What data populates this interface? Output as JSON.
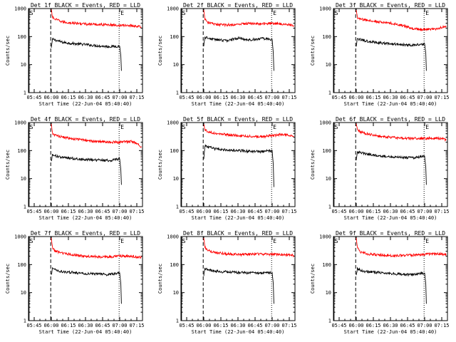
{
  "shared": {
    "ylabel": "Counts/sec",
    "xlabel": "Start Time (22-Jun-04 05:40:40)",
    "ylim": [
      1,
      1000
    ],
    "y_scale": "log",
    "y_ticks": [
      "1",
      "10",
      "100",
      "1000"
    ],
    "x_ticks": [
      "05:45",
      "06:00",
      "06:15",
      "06:30",
      "06:45",
      "07:00",
      "07:15"
    ],
    "x_tick_minutes": [
      5,
      20,
      35,
      50,
      65,
      80,
      95
    ],
    "xlim_minutes_after_start": [
      0,
      100
    ],
    "marker_S": "S",
    "marker_E": "E",
    "marker_S_minute": 0.5,
    "start_line_minute": 19.5,
    "end_line_minute": 79.5,
    "colors": {
      "events": "#000000",
      "lld": "#ff0000",
      "axes": "#000000"
    }
  },
  "chart_data": [
    {
      "type": "line",
      "title": "Det 1f BLACK = Events, RED = LLD",
      "series": [
        {
          "name": "Events",
          "color": "#000000",
          "x": [
            20,
            21,
            25,
            30,
            40,
            50,
            60,
            70,
            80,
            81,
            81.5
          ],
          "y": [
            40,
            80,
            72,
            62,
            56,
            52,
            47,
            44,
            45,
            20,
            6
          ]
        },
        {
          "name": "LLD",
          "color": "#ff0000",
          "x": [
            20,
            21,
            23,
            30,
            40,
            50,
            60,
            70,
            80,
            90,
            99
          ],
          "y": [
            900,
            500,
            420,
            330,
            300,
            280,
            270,
            265,
            250,
            250,
            220
          ]
        }
      ]
    },
    {
      "type": "line",
      "title": "Det 2f BLACK = Events, RED = LLD",
      "series": [
        {
          "name": "Events",
          "color": "#000000",
          "x": [
            20,
            21,
            25,
            30,
            40,
            50,
            60,
            70,
            80,
            81,
            81.5
          ],
          "y": [
            50,
            95,
            85,
            78,
            72,
            88,
            75,
            85,
            80,
            25,
            6
          ]
        },
        {
          "name": "LLD",
          "color": "#ff0000",
          "x": [
            20,
            21,
            23,
            30,
            40,
            50,
            60,
            70,
            80,
            90,
            99
          ],
          "y": [
            900,
            420,
            330,
            270,
            260,
            270,
            300,
            280,
            300,
            280,
            250
          ]
        }
      ]
    },
    {
      "type": "line",
      "title": "Det 3f BLACK = Events, RED = LLD",
      "series": [
        {
          "name": "Events",
          "color": "#000000",
          "x": [
            20,
            21,
            25,
            30,
            40,
            50,
            60,
            70,
            80,
            81,
            81.5
          ],
          "y": [
            45,
            82,
            75,
            68,
            60,
            55,
            52,
            50,
            55,
            25,
            6
          ]
        },
        {
          "name": "LLD",
          "color": "#ff0000",
          "x": [
            20,
            21,
            23,
            30,
            40,
            50,
            60,
            70,
            80,
            90,
            99
          ],
          "y": [
            900,
            480,
            420,
            380,
            330,
            300,
            250,
            190,
            180,
            190,
            230
          ]
        }
      ]
    },
    {
      "type": "line",
      "title": "Det 4f BLACK = Events, RED = LLD",
      "series": [
        {
          "name": "Events",
          "color": "#000000",
          "x": [
            20,
            21,
            25,
            30,
            40,
            50,
            60,
            70,
            80,
            81,
            81.5
          ],
          "y": [
            40,
            72,
            62,
            56,
            52,
            48,
            46,
            44,
            50,
            20,
            6
          ]
        },
        {
          "name": "LLD",
          "color": "#ff0000",
          "x": [
            20,
            21,
            23,
            30,
            40,
            50,
            60,
            70,
            80,
            90,
            95,
            99
          ],
          "y": [
            900,
            420,
            360,
            300,
            260,
            230,
            210,
            200,
            200,
            210,
            180,
            140
          ]
        }
      ]
    },
    {
      "type": "line",
      "title": "Det 5f BLACK = Events, RED = LLD",
      "series": [
        {
          "name": "Events",
          "color": "#000000",
          "x": [
            20,
            21,
            25,
            30,
            40,
            50,
            60,
            70,
            80,
            81,
            81.5
          ],
          "y": [
            50,
            150,
            130,
            115,
            105,
            100,
            95,
            92,
            100,
            30,
            5
          ]
        },
        {
          "name": "LLD",
          "color": "#ff0000",
          "x": [
            20,
            21,
            23,
            30,
            40,
            50,
            60,
            70,
            80,
            90,
            99
          ],
          "y": [
            900,
            560,
            480,
            420,
            370,
            340,
            320,
            310,
            340,
            380,
            330
          ]
        }
      ]
    },
    {
      "type": "line",
      "title": "Det 6f BLACK = Events, RED = LLD",
      "series": [
        {
          "name": "Events",
          "color": "#000000",
          "x": [
            20,
            21,
            25,
            30,
            40,
            50,
            60,
            70,
            80,
            81,
            81.5
          ],
          "y": [
            45,
            90,
            82,
            75,
            66,
            60,
            57,
            55,
            62,
            25,
            6
          ]
        },
        {
          "name": "LLD",
          "color": "#ff0000",
          "x": [
            20,
            21,
            23,
            30,
            40,
            50,
            60,
            70,
            80,
            90,
            99
          ],
          "y": [
            900,
            560,
            470,
            390,
            330,
            300,
            280,
            270,
            270,
            280,
            250
          ]
        }
      ]
    },
    {
      "type": "line",
      "title": "Det 7f BLACK = Events, RED = LLD",
      "series": [
        {
          "name": "Events",
          "color": "#000000",
          "x": [
            20,
            21,
            25,
            30,
            40,
            50,
            60,
            70,
            80,
            81,
            81.5
          ],
          "y": [
            40,
            72,
            62,
            55,
            52,
            48,
            46,
            44,
            50,
            20,
            4
          ]
        },
        {
          "name": "LLD",
          "color": "#ff0000",
          "x": [
            20,
            21,
            23,
            30,
            40,
            50,
            60,
            70,
            80,
            90,
            99
          ],
          "y": [
            900,
            400,
            310,
            250,
            220,
            200,
            190,
            185,
            200,
            200,
            180
          ]
        }
      ]
    },
    {
      "type": "line",
      "title": "Det 8f BLACK = Events, RED = LLD",
      "series": [
        {
          "name": "Events",
          "color": "#000000",
          "x": [
            20,
            21,
            25,
            30,
            40,
            50,
            60,
            70,
            80,
            81,
            81.5
          ],
          "y": [
            40,
            72,
            64,
            58,
            55,
            52,
            50,
            50,
            52,
            20,
            4
          ]
        },
        {
          "name": "LLD",
          "color": "#ff0000",
          "x": [
            20,
            21,
            23,
            30,
            40,
            50,
            60,
            70,
            80,
            90,
            99
          ],
          "y": [
            900,
            420,
            320,
            270,
            240,
            230,
            230,
            240,
            230,
            230,
            210
          ]
        }
      ]
    },
    {
      "type": "line",
      "title": "Det 9f BLACK = Events, RED = LLD",
      "series": [
        {
          "name": "Events",
          "color": "#000000",
          "x": [
            20,
            21,
            25,
            30,
            40,
            50,
            60,
            70,
            80,
            81,
            81.5
          ],
          "y": [
            40,
            72,
            60,
            55,
            52,
            48,
            45,
            44,
            50,
            20,
            4
          ]
        },
        {
          "name": "LLD",
          "color": "#ff0000",
          "x": [
            20,
            21,
            23,
            30,
            40,
            50,
            60,
            70,
            80,
            90,
            99
          ],
          "y": [
            900,
            400,
            290,
            240,
            220,
            210,
            210,
            220,
            230,
            250,
            230
          ]
        }
      ]
    }
  ]
}
